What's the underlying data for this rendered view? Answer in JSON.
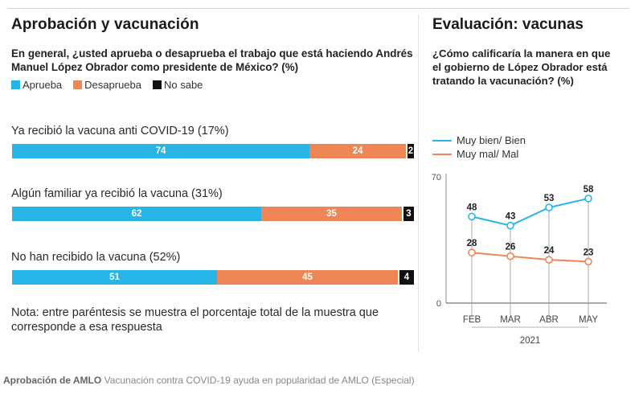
{
  "left": {
    "title": "Aprobación y vacunación",
    "question": "En general, ¿usted aprueba o desaprueba el trabajo que está haciendo Andrés Manuel López Obrador como presidente de México? (%)",
    "legend": [
      {
        "label": "Aprueba",
        "color": "#27b5e8"
      },
      {
        "label": "Desaprueba",
        "color": "#ef8656"
      },
      {
        "label": "No sabe",
        "color": "#111111"
      }
    ],
    "groups": [
      {
        "label": "Ya recibió la vacuna anti COVID-19 (17%)",
        "aprueba": 74,
        "desaprueba": 24,
        "no_sabe": 2
      },
      {
        "label": "Algún familiar ya recibió la vacuna (31%)",
        "aprueba": 62,
        "desaprueba": 35,
        "no_sabe": 3
      },
      {
        "label": "No han recibido la vacuna (52%)",
        "aprueba": 51,
        "desaprueba": 45,
        "no_sabe": 4
      }
    ],
    "note": "Nota: entre paréntesis se muestra el porcentaje total de la muestra que corresponde a esa respuesta"
  },
  "right": {
    "title": "Evaluación: vacunas",
    "question": "¿Cómo calificaría la manera en que el gobierno de López Obrador está tratando la vacunación? (%)"
  },
  "chart_data": [
    {
      "type": "bar",
      "stacked": true,
      "orientation": "horizontal",
      "categories": [
        "Ya recibió la vacuna anti COVID-19 (17%)",
        "Algún familiar ya recibió la vacuna (31%)",
        "No han recibido la vacuna (52%)"
      ],
      "series": [
        {
          "name": "Aprueba",
          "values": [
            74,
            62,
            51
          ],
          "color": "#27b5e8"
        },
        {
          "name": "Desaprueba",
          "values": [
            24,
            35,
            45
          ],
          "color": "#ef8656"
        },
        {
          "name": "No sabe",
          "values": [
            2,
            3,
            4
          ],
          "color": "#111111"
        }
      ]
    },
    {
      "type": "line",
      "categories": [
        "FEB",
        "MAR",
        "ABR",
        "MAY"
      ],
      "xlabel": "2021",
      "ylim": [
        0,
        70
      ],
      "yticks": [
        0,
        70
      ],
      "grid": "vertical",
      "series": [
        {
          "name": "Muy bien/ Bien",
          "values": [
            48,
            43,
            53,
            58
          ],
          "color": "#27b5e8"
        },
        {
          "name": "Muy mal/ Mal",
          "values": [
            28,
            26,
            24,
            23
          ],
          "color": "#ef8656"
        }
      ]
    }
  ],
  "caption": {
    "bold": "Aprobación de AMLO",
    "text": "Vacunación contra COVID-19 ayuda en popularidad de AMLO (Especial)"
  }
}
